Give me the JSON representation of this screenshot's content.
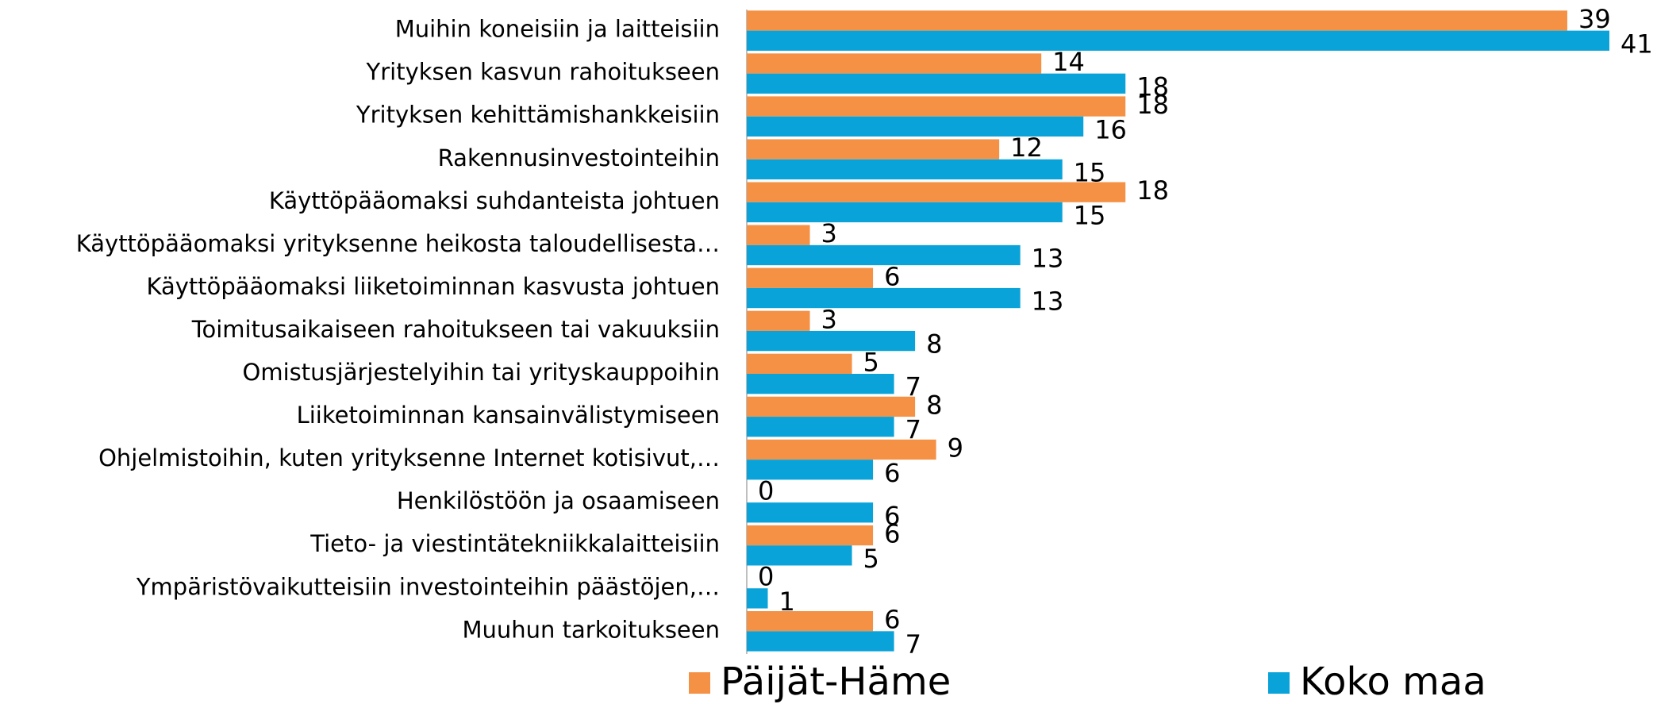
{
  "chart_data": {
    "type": "bar",
    "orientation": "horizontal",
    "categories": [
      "Muihin koneisiin ja laitteisiin",
      "Yrityksen kasvun rahoitukseen",
      "Yrityksen kehittämishankkeisiin",
      "Rakennusinvestointeihin",
      "Käyttöpääomaksi suhdanteista johtuen",
      "Käyttöpääomaksi yrityksenne heikosta taloudellisesta…",
      "Käyttöpääomaksi liiketoiminnan kasvusta johtuen",
      "Toimitusaikaiseen rahoitukseen tai vakuuksiin",
      "Omistusjärjestelyihin tai yrityskauppoihin",
      "Liiketoiminnan kansainvälistymiseen",
      "Ohjelmistoihin, kuten yrityksenne Internet kotisivut,…",
      "Henkilöstöön ja osaamiseen",
      "Tieto- ja viestintätekniikkalaitteisiin",
      "Ympäristövaikutteisiin investointeihin päästöjen,…",
      "Muuhun tarkoitukseen"
    ],
    "series": [
      {
        "name": "Päijät-Häme",
        "color": "#f59145",
        "values": [
          39,
          14,
          18,
          12,
          18,
          3,
          6,
          3,
          5,
          8,
          9,
          0,
          6,
          0,
          6
        ]
      },
      {
        "name": "Koko maa",
        "color": "#0aa3d9",
        "values": [
          41,
          18,
          16,
          15,
          15,
          13,
          13,
          8,
          7,
          7,
          6,
          6,
          5,
          1,
          7
        ]
      }
    ],
    "legend": "bottom"
  }
}
